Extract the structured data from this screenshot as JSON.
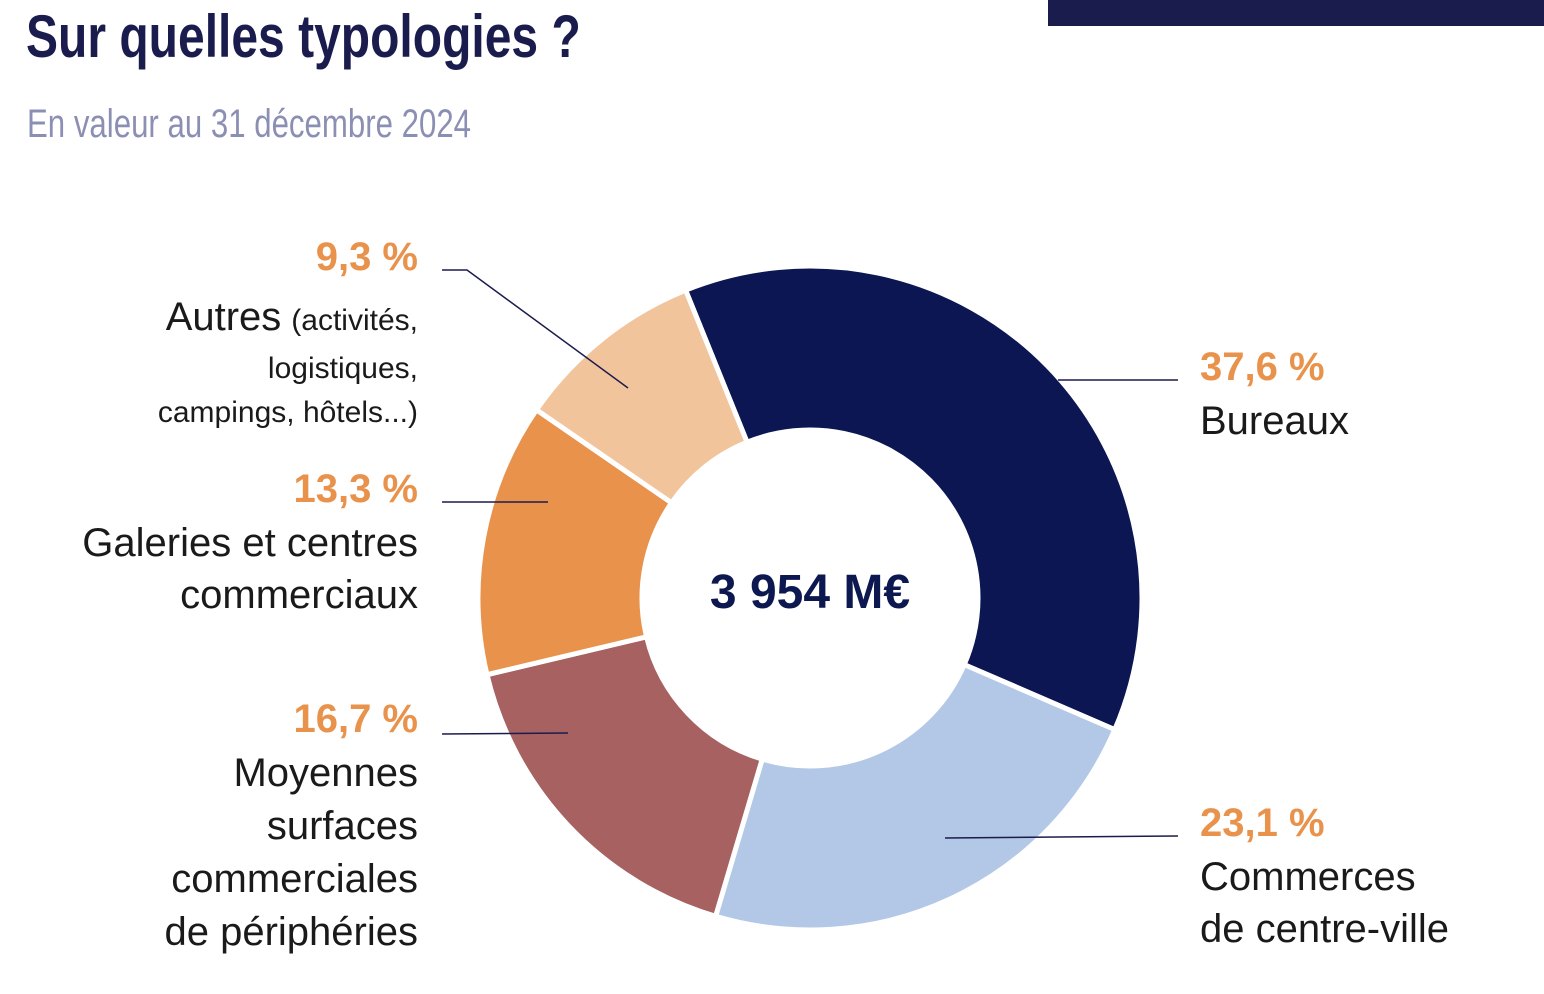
{
  "title": "Sur quelles typologies ?",
  "subtitle": "En valeur au 31 décembre 2024",
  "chart_data": {
    "type": "pie",
    "variant": "donut",
    "center_label": "3 954 M€",
    "slices": [
      {
        "name": "Bureaux",
        "value": 37.6,
        "pct_label": "37,6 %",
        "label_lines": [
          "Bureaux"
        ],
        "color": "#0b1652"
      },
      {
        "name": "Commerces de centre-ville",
        "value": 23.1,
        "pct_label": "23,1 %",
        "label_lines": [
          "Commerces",
          "de centre-ville"
        ],
        "color": "#b3c8e6"
      },
      {
        "name": "Moyennes surfaces commerciales de périphéries",
        "value": 16.7,
        "pct_label": "16,7 %",
        "label_lines": [
          "Moyennes",
          "surfaces",
          "commerciales",
          "de périphéries"
        ],
        "color": "#a66160"
      },
      {
        "name": "Galeries et centres commerciaux",
        "value": 13.3,
        "pct_label": "13,3 %",
        "label_lines": [
          "Galeries et centres",
          "commerciaux"
        ],
        "color": "#e8924c"
      },
      {
        "name": "Autres",
        "value": 9.3,
        "pct_label": "9,3 %",
        "label_lines": [
          "Autres"
        ],
        "label_note_lines": [
          "(activités,",
          "logistiques,",
          "campings, hôtels...)"
        ],
        "color": "#f2c49c"
      }
    ]
  }
}
